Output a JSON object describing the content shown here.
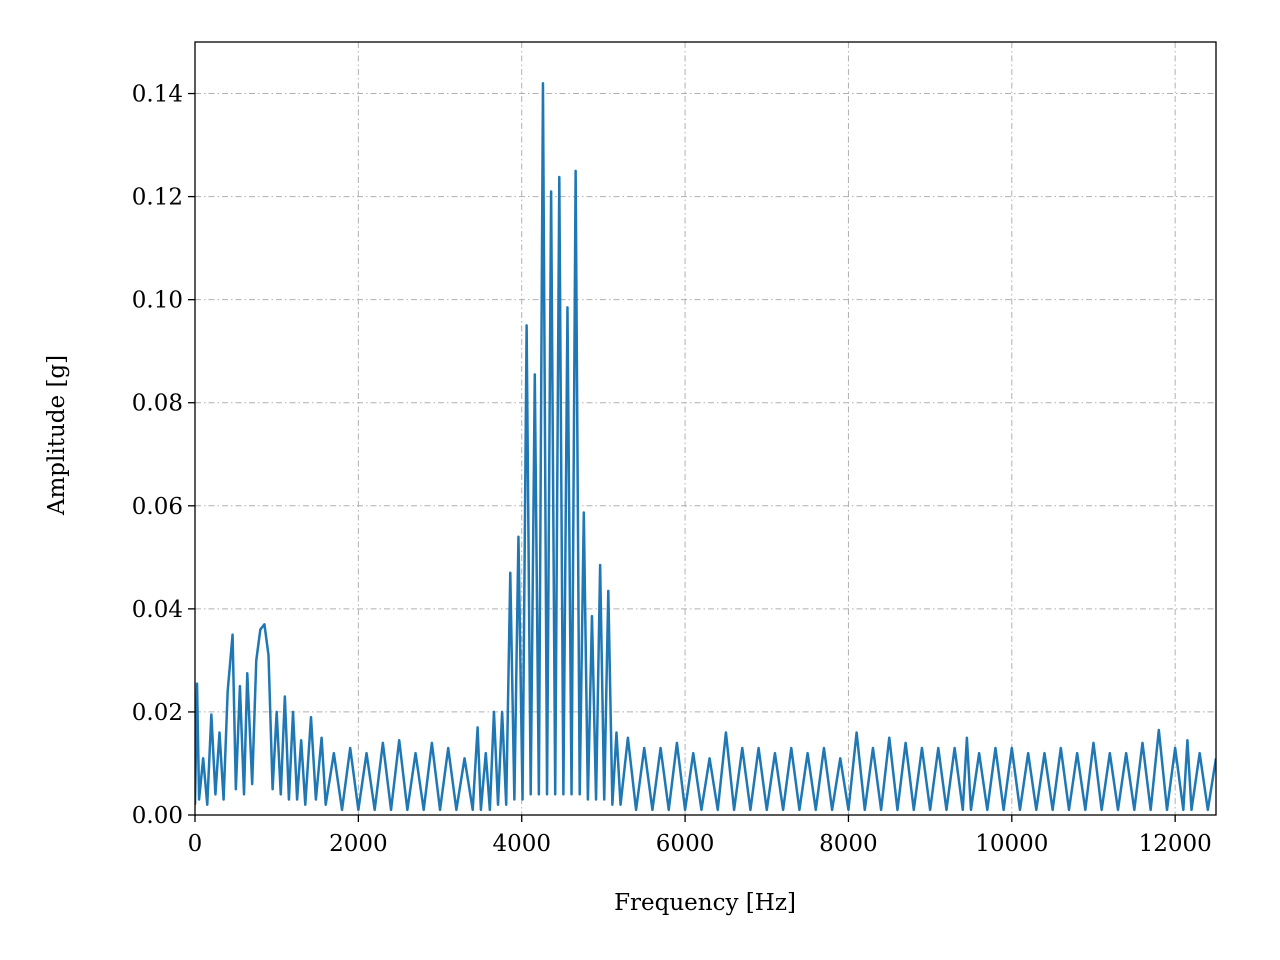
{
  "chart_data": {
    "type": "line",
    "x_label": "Frequency [Hz]",
    "y_label": "Amplitude [g]",
    "xlim": [
      0,
      12500
    ],
    "ylim": [
      0,
      0.15
    ],
    "xticks": [
      0,
      2000,
      4000,
      6000,
      8000,
      10000,
      12000
    ],
    "yticks": [
      {
        "value": 0,
        "label": "0.00"
      },
      {
        "value": 0.02,
        "label": "0.02"
      },
      {
        "value": 0.04,
        "label": "0.04"
      },
      {
        "value": 0.06,
        "label": "0.06"
      },
      {
        "value": 0.08,
        "label": "0.08"
      },
      {
        "value": 0.1,
        "label": "0.10"
      },
      {
        "value": 0.12,
        "label": "0.12"
      },
      {
        "value": 0.14,
        "label": "0.14"
      }
    ],
    "grid": true,
    "series": [
      {
        "color": "#1f77b4",
        "x": [
          0,
          25,
          50,
          100,
          150,
          200,
          250,
          300,
          350,
          400,
          460,
          500,
          550,
          600,
          640,
          700,
          750,
          800,
          850,
          900,
          950,
          1000,
          1050,
          1100,
          1150,
          1200,
          1250,
          1300,
          1350,
          1420,
          1480,
          1550,
          1600,
          1700,
          1800,
          1900,
          2000,
          2100,
          2200,
          2300,
          2400,
          2500,
          2600,
          2700,
          2800,
          2900,
          3000,
          3100,
          3200,
          3300,
          3400,
          3460,
          3500,
          3560,
          3610,
          3660,
          3710,
          3760,
          3810,
          3860,
          3910,
          3960,
          4010,
          4060,
          4110,
          4160,
          4210,
          4260,
          4310,
          4360,
          4410,
          4460,
          4510,
          4560,
          4610,
          4660,
          4710,
          4760,
          4810,
          4860,
          4910,
          4960,
          5010,
          5060,
          5110,
          5160,
          5210,
          5300,
          5400,
          5500,
          5600,
          5700,
          5800,
          5900,
          6000,
          6100,
          6200,
          6300,
          6400,
          6500,
          6600,
          6700,
          6800,
          6900,
          7000,
          7100,
          7200,
          7300,
          7400,
          7500,
          7600,
          7700,
          7800,
          7900,
          8000,
          8100,
          8200,
          8300,
          8400,
          8500,
          8600,
          8700,
          8800,
          8900,
          9000,
          9100,
          9200,
          9300,
          9400,
          9450,
          9500,
          9600,
          9700,
          9800,
          9900,
          10000,
          10100,
          10200,
          10300,
          10400,
          10500,
          10600,
          10700,
          10800,
          10900,
          11000,
          11100,
          11200,
          11300,
          11400,
          11500,
          11600,
          11700,
          11800,
          11900,
          12000,
          12100,
          12150,
          12200,
          12300,
          12400,
          12500
        ],
        "values": [
          0.002,
          0.0255,
          0.003,
          0.011,
          0.002,
          0.0195,
          0.004,
          0.016,
          0.003,
          0.024,
          0.035,
          0.005,
          0.025,
          0.004,
          0.0275,
          0.006,
          0.03,
          0.036,
          0.037,
          0.031,
          0.005,
          0.02,
          0.004,
          0.023,
          0.003,
          0.02,
          0.003,
          0.0145,
          0.002,
          0.019,
          0.003,
          0.015,
          0.002,
          0.012,
          0.001,
          0.013,
          0.001,
          0.012,
          0.001,
          0.014,
          0.001,
          0.0145,
          0.001,
          0.012,
          0.001,
          0.014,
          0.001,
          0.013,
          0.001,
          0.011,
          0.001,
          0.017,
          0.001,
          0.012,
          0.001,
          0.02,
          0.002,
          0.02,
          0.002,
          0.047,
          0.003,
          0.054,
          0.003,
          0.095,
          0.004,
          0.0855,
          0.004,
          0.142,
          0.004,
          0.121,
          0.004,
          0.1238,
          0.004,
          0.0985,
          0.004,
          0.125,
          0.004,
          0.0587,
          0.003,
          0.0386,
          0.003,
          0.0485,
          0.003,
          0.0435,
          0.002,
          0.016,
          0.002,
          0.015,
          0.001,
          0.013,
          0.001,
          0.013,
          0.001,
          0.014,
          0.001,
          0.012,
          0.001,
          0.011,
          0.001,
          0.016,
          0.001,
          0.013,
          0.001,
          0.013,
          0.001,
          0.012,
          0.001,
          0.013,
          0.001,
          0.012,
          0.001,
          0.013,
          0.001,
          0.011,
          0.001,
          0.016,
          0.001,
          0.013,
          0.001,
          0.015,
          0.001,
          0.014,
          0.001,
          0.013,
          0.001,
          0.013,
          0.001,
          0.013,
          0.001,
          0.015,
          0.001,
          0.012,
          0.001,
          0.013,
          0.001,
          0.013,
          0.001,
          0.012,
          0.001,
          0.012,
          0.001,
          0.013,
          0.001,
          0.012,
          0.001,
          0.014,
          0.001,
          0.012,
          0.001,
          0.012,
          0.001,
          0.014,
          0.001,
          0.0165,
          0.001,
          0.013,
          0.001,
          0.0145,
          0.001,
          0.012,
          0.001,
          0.011
        ]
      }
    ]
  }
}
